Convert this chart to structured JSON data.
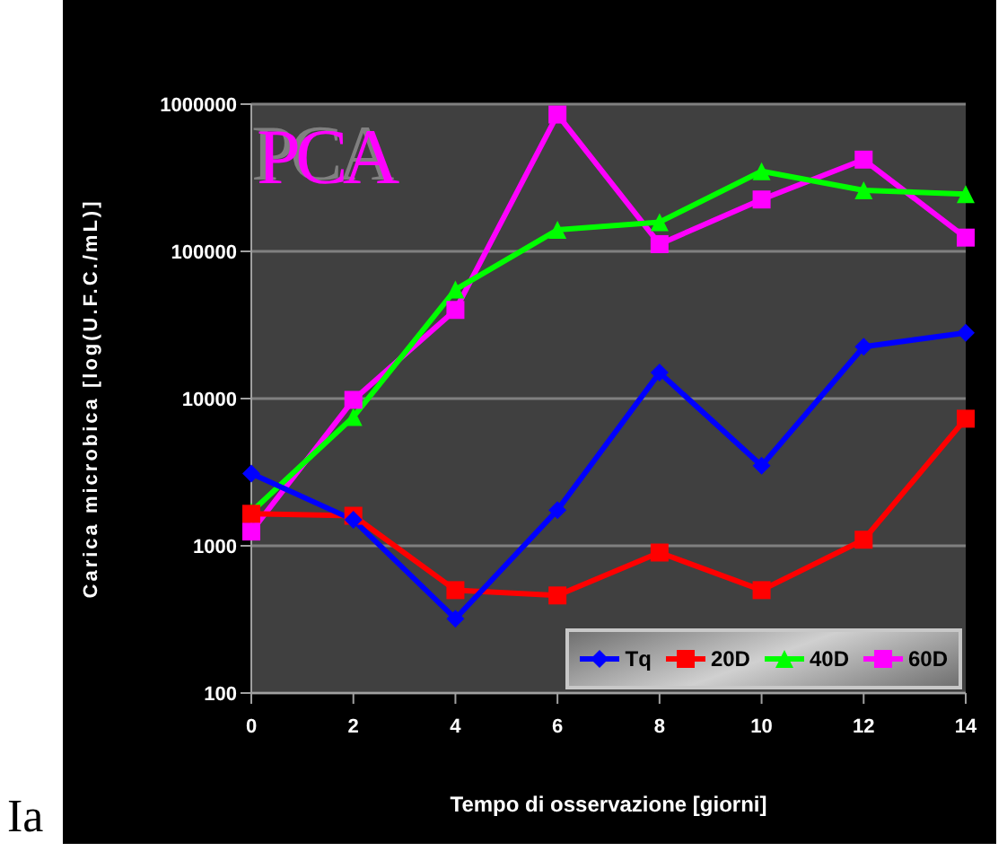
{
  "chart_data": {
    "type": "line",
    "title": "PCA",
    "xlabel": "Tempo di osservazione [giorni]",
    "ylabel": "Carica microbica [log(U.F.C./mL)]",
    "annotations": [
      "Ia"
    ],
    "categories": [
      "0",
      "2",
      "4",
      "6",
      "8",
      "10",
      "12",
      "14"
    ],
    "series": [
      {
        "name": "Tq",
        "color": "#0000ff",
        "marker": "diamond",
        "values": [
          3100,
          1500,
          320,
          1750,
          15000,
          3500,
          22500,
          28000
        ]
      },
      {
        "name": "20D",
        "color": "#ff0000",
        "marker": "square",
        "values": [
          1650,
          1600,
          500,
          460,
          900,
          500,
          1100,
          7300
        ]
      },
      {
        "name": "40D",
        "color": "#00ff00",
        "marker": "triangle",
        "values": [
          1700,
          7500,
          55000,
          140000,
          158000,
          350000,
          260000,
          245000
        ]
      },
      {
        "name": "60D",
        "color": "#ff00ff",
        "marker": "square",
        "values": [
          1250,
          9800,
          40000,
          850000,
          112000,
          225000,
          420000,
          124000
        ]
      }
    ],
    "log": true,
    "ylim": [
      100,
      1000000
    ],
    "yticks": [
      100,
      1000,
      10000,
      100000,
      1000000
    ],
    "grid": "y",
    "legend": "bottom right"
  }
}
